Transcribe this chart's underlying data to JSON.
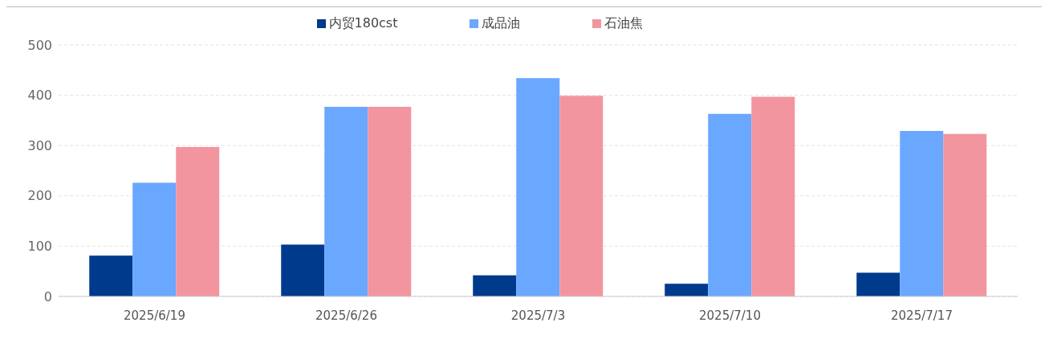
{
  "chart_data": {
    "type": "bar",
    "categories": [
      "2025/6/19",
      "2025/6/26",
      "2025/7/3",
      "2025/7/10",
      "2025/7/17"
    ],
    "series": [
      {
        "name": "内贸180cst",
        "color": "#003a8c",
        "values": [
          81,
          103,
          42,
          25,
          47
        ]
      },
      {
        "name": "成品油",
        "color": "#6aa7ff",
        "values": [
          226,
          377,
          434,
          363,
          329
        ]
      },
      {
        "name": "石油焦",
        "color": "#f2959f",
        "values": [
          297,
          377,
          399,
          397,
          323
        ]
      }
    ],
    "ylim": [
      0,
      500
    ],
    "yticks": [
      0,
      100,
      200,
      300,
      400,
      500
    ],
    "grid": "y",
    "legend": "top"
  }
}
